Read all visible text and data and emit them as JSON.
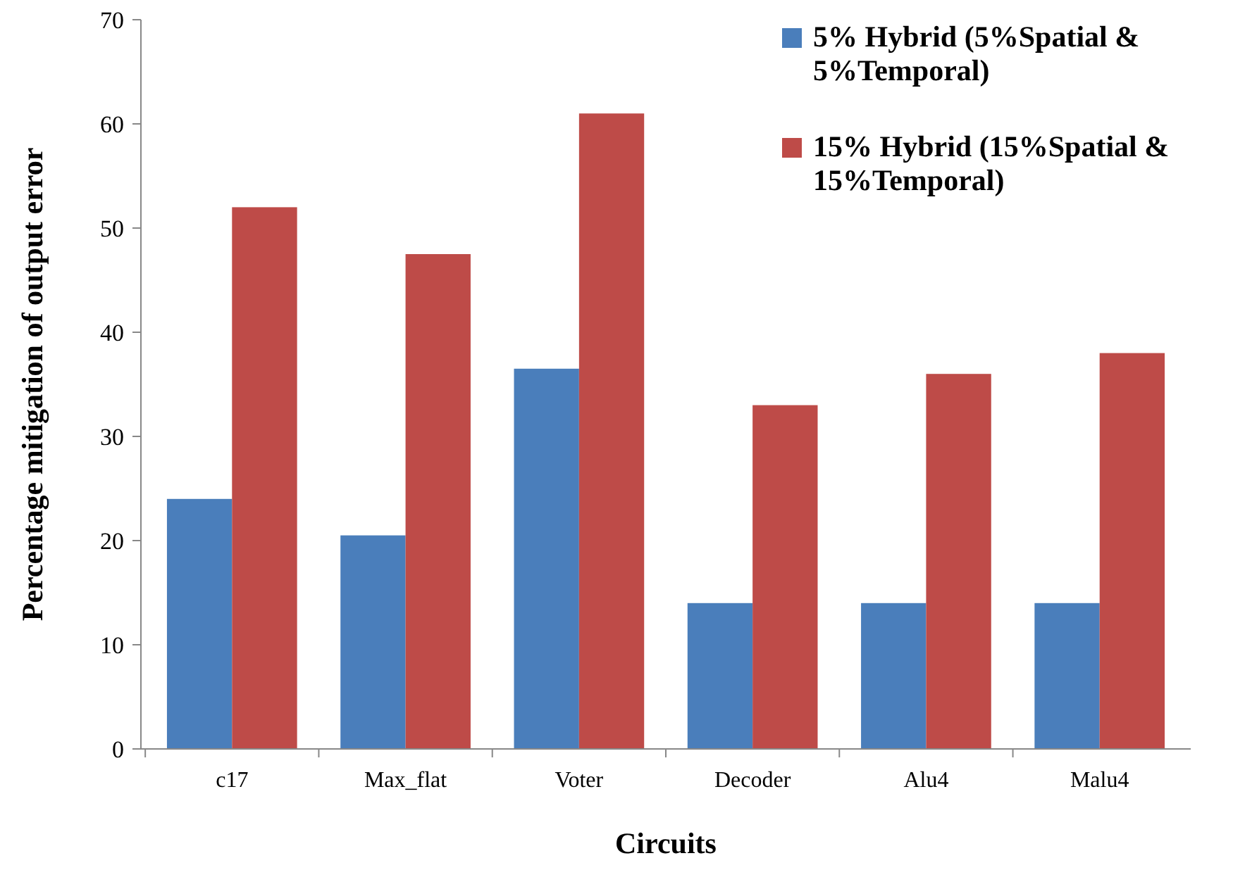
{
  "chart_data": {
    "type": "bar",
    "xlabel": "Circuits",
    "ylabel": "Percentage mitigation of output error",
    "categories": [
      "c17",
      "Max_flat",
      "Voter",
      "Decoder",
      "Alu4",
      "Malu4"
    ],
    "series": [
      {
        "name": "5% Hybrid (5%Spatial & 5%Temporal)",
        "color": "#4a7ebb",
        "values": [
          24,
          20.5,
          36.5,
          14,
          14,
          14
        ]
      },
      {
        "name": "15% Hybrid (15%Spatial & 15%Temporal)",
        "color": "#be4b48",
        "values": [
          52,
          47.5,
          61,
          33,
          36,
          38
        ]
      }
    ],
    "ylim": [
      0,
      70
    ],
    "yticks": [
      0,
      10,
      20,
      30,
      40,
      50,
      60,
      70
    ],
    "grid": false,
    "legend": "top right"
  }
}
